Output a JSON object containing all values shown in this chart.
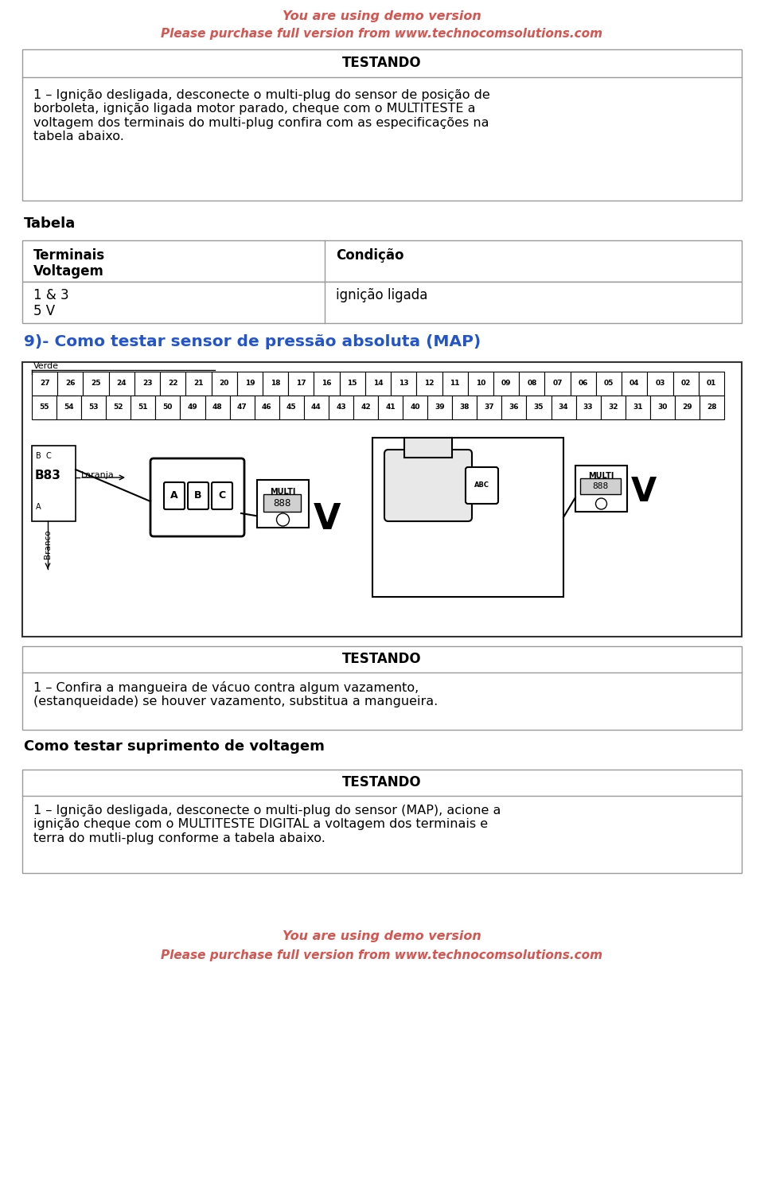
{
  "bg_color": "#ffffff",
  "demo_color": "#d9534f",
  "demo_line1": "You are using demo version",
  "demo_line2": "Please purchase full version from www.technocomsolutions.com",
  "demo_fontsize_1": 11.5,
  "demo_fontsize_2": 11,
  "box1_title": "TESTANDO",
  "box1_body": "1 – Ignição desligada, desconecte o multi-plug do sensor de posição de\nborboleta, ignição ligada motor parado, cheque com o MULTITESTE a\nvoltagem dos terminais do multi-plug confira com as especificações na\ntabela abaixo.",
  "tabela_label": "Tabela",
  "table_col1_header_line1": "Terminais",
  "table_col1_header_line2": "Voltagem",
  "table_col2_header": "Condição",
  "table_row1_col1_line1": "1 & 3",
  "table_row1_col1_line2": "5 V",
  "table_row1_col2": "ignição ligada",
  "section_title": "9)- Como testar sensor de pressão absoluta (MAP)",
  "nums_top": [
    "27",
    "26",
    "25",
    "24",
    "23",
    "22",
    "21",
    "20",
    "19",
    "18",
    "17",
    "16",
    "15",
    "14",
    "13",
    "12",
    "11",
    "10",
    "09",
    "08",
    "07",
    "06",
    "05",
    "04",
    "03",
    "02",
    "01"
  ],
  "nums_bot": [
    "55",
    "54",
    "53",
    "52",
    "51",
    "50",
    "49",
    "48",
    "47",
    "46",
    "45",
    "44",
    "43",
    "42",
    "41",
    "40",
    "39",
    "38",
    "37",
    "36",
    "35",
    "34",
    "33",
    "32",
    "31",
    "30",
    "29",
    "28"
  ],
  "box2_title": "TESTANDO",
  "box2_body": "1 – Confira a mangueira de vácuo contra algum vazamento,\n(estanqueidade) se houver vazamento, substitua a mangueira.",
  "section2_title": "Como testar suprimento de voltagem",
  "box3_title": "TESTANDO",
  "box3_body": "1 – Ignição desligada, desconecte o multi-plug do sensor (MAP), acione a\nignição cheque com o MULTITESTE DIGITAL a voltagem dos terminais e\nterra do mutli-plug conforme a tabela abaixo.",
  "section_title_color": "#2255cc",
  "text_color": "#000000",
  "border_color": "#999999",
  "diagram_border": "#333333"
}
